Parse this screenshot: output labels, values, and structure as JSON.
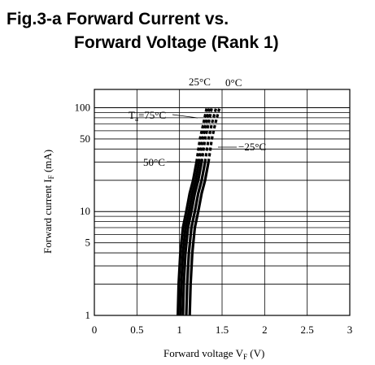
{
  "figure": {
    "title_line1": "Fig.3-a Forward Current vs.",
    "title_line2": "Forward Voltage (Rank 1)"
  },
  "chart_data": {
    "type": "line",
    "xlabel_main": "Forward voltage V",
    "xlabel_sub": "F",
    "xlabel_unit": " (V)",
    "ylabel_main": "Forward current I",
    "ylabel_sub": "F",
    "ylabel_unit": " (mA)",
    "xlim": [
      0,
      3
    ],
    "ylim": [
      1,
      150
    ],
    "y_scale": "log",
    "grid": true,
    "x_ticks": [
      "0",
      "0.5",
      "1",
      "1.5",
      "2",
      "2.5",
      "3"
    ],
    "x_tick_values": [
      0,
      0.5,
      1,
      1.5,
      2,
      2.5,
      3
    ],
    "y_ticks": [
      "1",
      "5",
      "10",
      "50",
      "100"
    ],
    "y_tick_values": [
      1,
      5,
      10,
      50,
      100
    ],
    "solid_max_current_mA": 30,
    "series": [
      {
        "name": "Ta=75°C",
        "x": [
          0.98,
          0.99,
          1.01,
          1.04,
          1.08,
          1.12,
          1.16,
          1.2,
          1.24,
          1.28,
          1.32
        ],
        "y": [
          1,
          2,
          4,
          7,
          10,
          15,
          20,
          30,
          50,
          70,
          100
        ]
      },
      {
        "name": "50°C",
        "x": [
          1.01,
          1.02,
          1.04,
          1.07,
          1.11,
          1.15,
          1.19,
          1.23,
          1.27,
          1.31,
          1.35
        ],
        "y": [
          1,
          2,
          4,
          7,
          10,
          15,
          20,
          30,
          50,
          70,
          100
        ]
      },
      {
        "name": "25°C",
        "x": [
          1.04,
          1.05,
          1.07,
          1.1,
          1.14,
          1.18,
          1.22,
          1.26,
          1.3,
          1.34,
          1.38
        ],
        "y": [
          1,
          2,
          4,
          7,
          10,
          15,
          20,
          30,
          50,
          70,
          100
        ]
      },
      {
        "name": "0°C",
        "x": [
          1.08,
          1.09,
          1.11,
          1.14,
          1.18,
          1.22,
          1.26,
          1.3,
          1.34,
          1.38,
          1.43
        ],
        "y": [
          1,
          2,
          4,
          7,
          10,
          15,
          20,
          30,
          50,
          70,
          100
        ]
      },
      {
        "name": "−25°C",
        "x": [
          1.12,
          1.13,
          1.15,
          1.18,
          1.22,
          1.26,
          1.3,
          1.34,
          1.38,
          1.42,
          1.47
        ],
        "y": [
          1,
          2,
          4,
          7,
          10,
          15,
          20,
          30,
          50,
          70,
          100
        ]
      }
    ],
    "annotations": {
      "t25": "25°C",
      "t0": "0°C",
      "ta_main": "T",
      "ta_sub": "a",
      "ta_rest": "=75°C",
      "t50": "50°C",
      "tm25": "−25°C"
    }
  }
}
